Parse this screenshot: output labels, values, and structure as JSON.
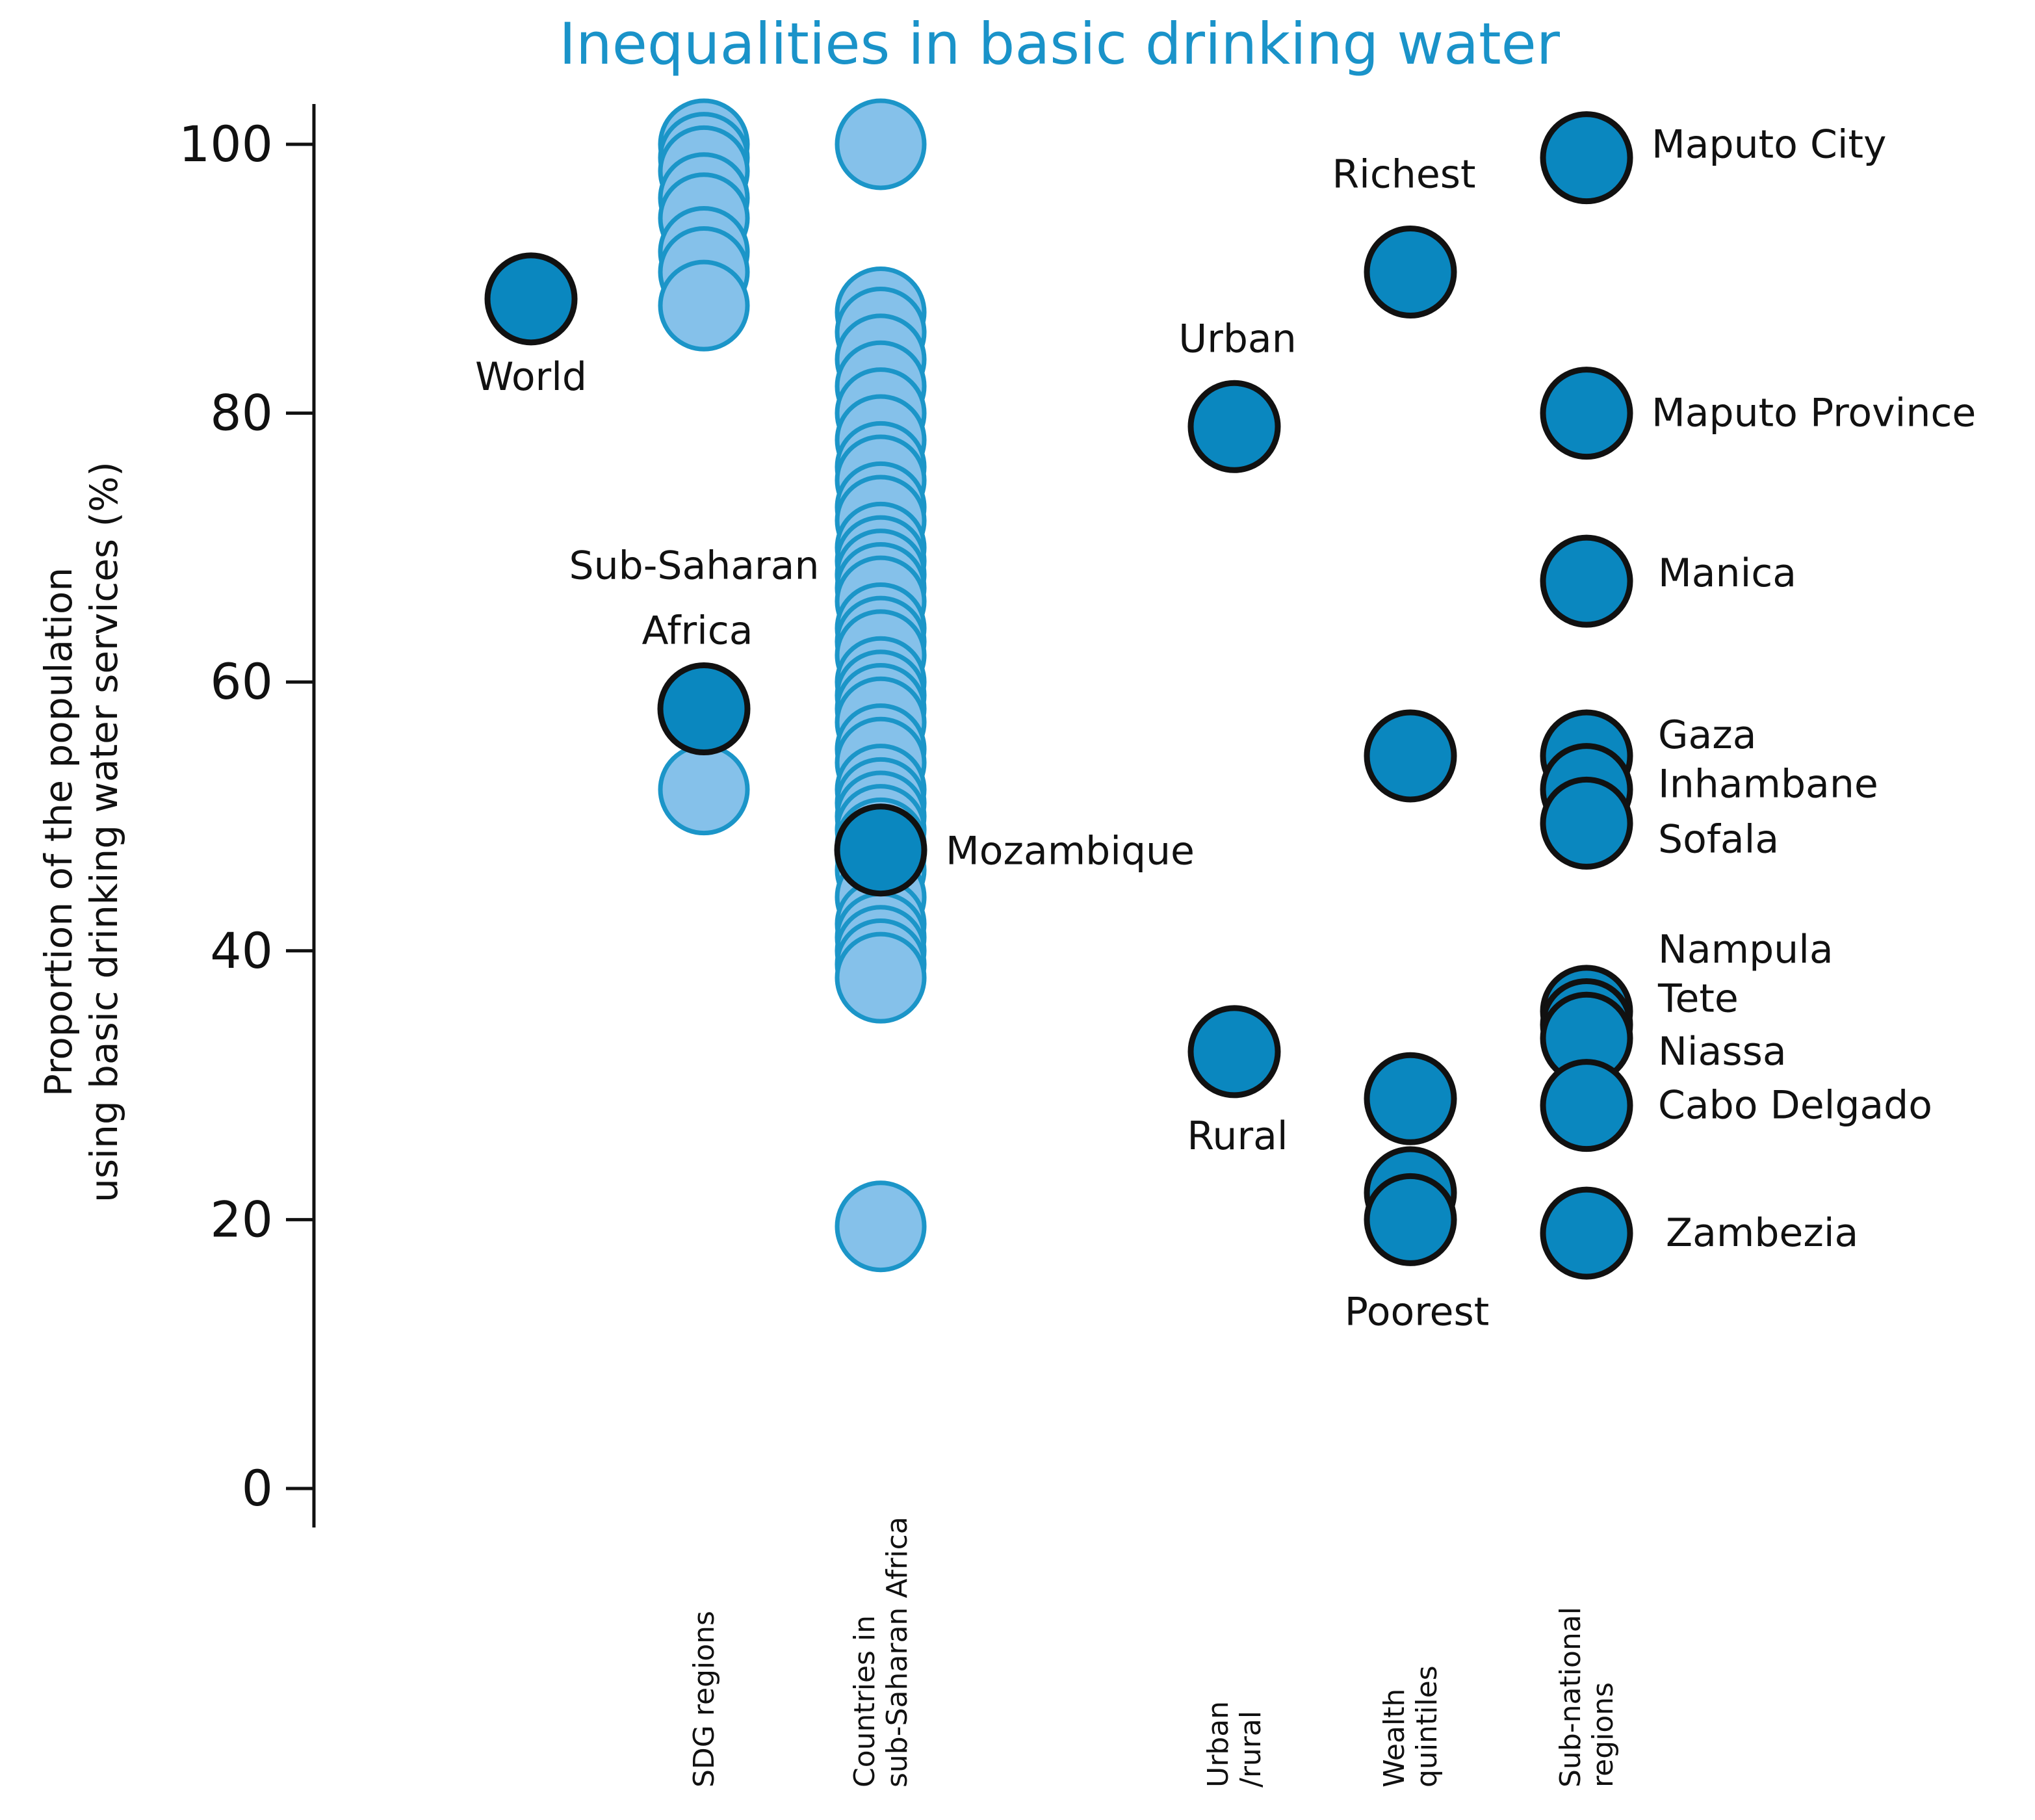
{
  "chart_data": {
    "type": "scatter",
    "title": "Inequalities in basic drinking water",
    "ylabel_lines": [
      "Proportion of the population",
      "using basic drinking water services (%)"
    ],
    "ylim": [
      0,
      100
    ],
    "yticks": [
      "0",
      "20",
      "40",
      "60",
      "80",
      "100"
    ],
    "categories": [
      {
        "id": "world",
        "lines": []
      },
      {
        "id": "sdg",
        "lines": [
          "SDG regions"
        ]
      },
      {
        "id": "countries",
        "lines": [
          "Countries in",
          "sub-Saharan Africa"
        ]
      },
      {
        "id": "urbanrural",
        "lines": [
          "Urban",
          "/rural"
        ]
      },
      {
        "id": "wealth",
        "lines": [
          "Wealth",
          "quintiles"
        ]
      },
      {
        "id": "subnational",
        "lines": [
          "Sub-national",
          "regions"
        ]
      }
    ],
    "colors": {
      "light_fill": "#85c1ea",
      "light_stroke": "#1b95c8",
      "dark_fill": "#0a87bf",
      "dark_stroke": "#111111",
      "title": "#1a93c9"
    },
    "background_points": [
      {
        "category": "sdg",
        "values": [
          100,
          99,
          98,
          96,
          94.5,
          92,
          90.5,
          88,
          52
        ]
      },
      {
        "category": "countries",
        "values": [
          100,
          87.5,
          86,
          84,
          82,
          80,
          78,
          76,
          75,
          73,
          72,
          70,
          69,
          68,
          67,
          66,
          64,
          63,
          62,
          60,
          59,
          58,
          57,
          55,
          54,
          52,
          51,
          50,
          49,
          48,
          47,
          46,
          44,
          42,
          41,
          40,
          39,
          38,
          19.5
        ]
      }
    ],
    "highlight_points": [
      {
        "category": "world",
        "value": 88.5,
        "label": "World"
      },
      {
        "category": "sdg",
        "value": 58,
        "label_lines": [
          "Sub-Saharan",
          "Africa"
        ]
      },
      {
        "category": "countries",
        "value": 47.5,
        "label": "Mozambique"
      },
      {
        "category": "urbanrural",
        "value": 79,
        "label": "Urban"
      },
      {
        "category": "urbanrural",
        "value": 32.5,
        "label": "Rural"
      },
      {
        "category": "wealth",
        "value": 90.5,
        "label": "Richest"
      },
      {
        "category": "wealth",
        "value": 54.5,
        "label": ""
      },
      {
        "category": "wealth",
        "value": 29,
        "label": ""
      },
      {
        "category": "wealth",
        "value": 22,
        "label": ""
      },
      {
        "category": "wealth",
        "value": 20,
        "label": "Poorest"
      },
      {
        "category": "subnational",
        "value": 99,
        "label": "Maputo City"
      },
      {
        "category": "subnational",
        "value": 80,
        "label": "Maputo Province"
      },
      {
        "category": "subnational",
        "value": 67.5,
        "label": "Manica"
      },
      {
        "category": "subnational",
        "value": 54.5,
        "label": "Gaza"
      },
      {
        "category": "subnational",
        "value": 52,
        "label": "Inhambane"
      },
      {
        "category": "subnational",
        "value": 49.5,
        "label": "Sofala"
      },
      {
        "category": "subnational",
        "value": 35.5,
        "label": "Nampula"
      },
      {
        "category": "subnational",
        "value": 34.5,
        "label": "Tete"
      },
      {
        "category": "subnational",
        "value": 33.5,
        "label": "Niassa"
      },
      {
        "category": "subnational",
        "value": 28.5,
        "label": "Cabo Delgado"
      },
      {
        "category": "subnational",
        "value": 19,
        "label": "Zambezia"
      }
    ]
  }
}
